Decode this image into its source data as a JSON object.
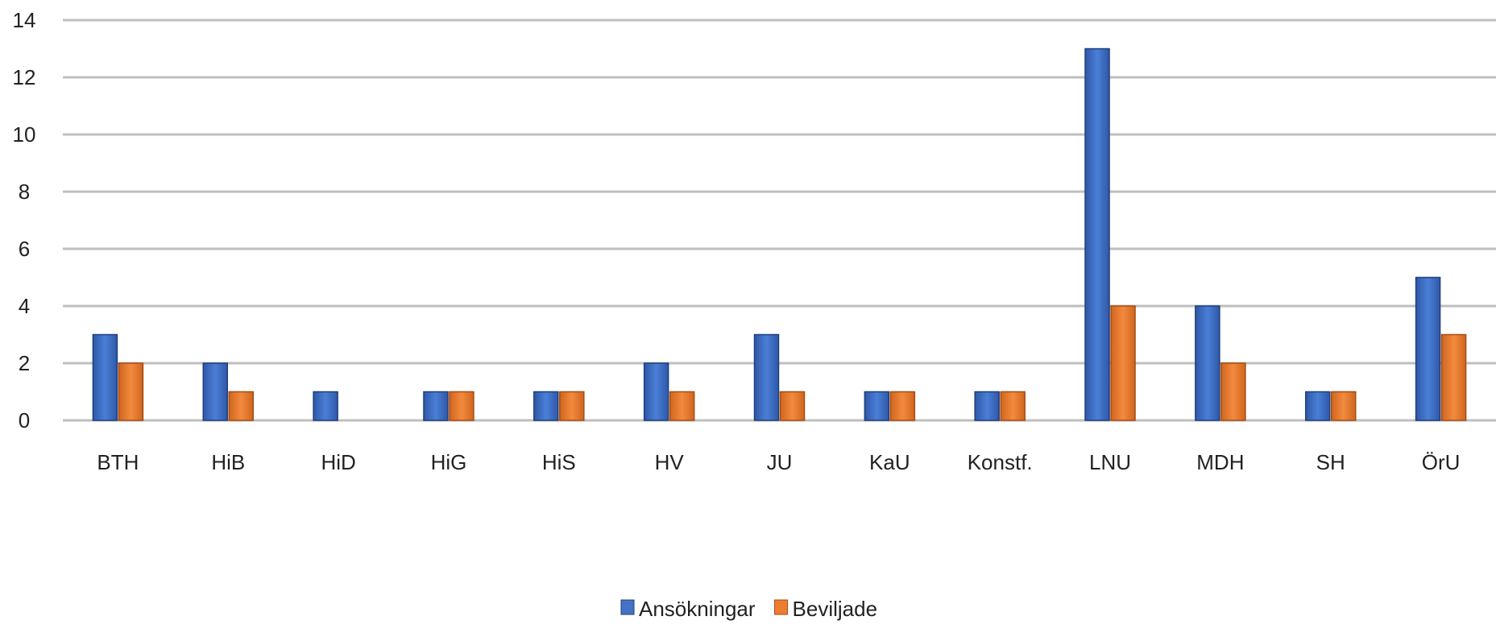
{
  "chart_data": {
    "type": "bar",
    "title": "",
    "xlabel": "",
    "ylabel": "",
    "ylim": [
      0,
      14
    ],
    "yticks": [
      0,
      2,
      4,
      6,
      8,
      10,
      12,
      14
    ],
    "grid": true,
    "legend_position": "bottom-center",
    "categories": [
      "BTH",
      "HiB",
      "HiD",
      "HiG",
      "HiS",
      "HV",
      "JU",
      "KaU",
      "Konstf.",
      "LNU",
      "MDH",
      "SH",
      "ÖrU"
    ],
    "series": [
      {
        "name": "Ansökningar",
        "color": "#4472C4",
        "values": [
          3,
          2,
          1,
          1,
          1,
          2,
          3,
          1,
          1,
          13,
          4,
          1,
          5
        ]
      },
      {
        "name": "Beviljade",
        "color": "#ED7D31",
        "values": [
          2,
          1,
          0,
          1,
          1,
          1,
          1,
          1,
          1,
          4,
          2,
          1,
          3
        ]
      }
    ]
  }
}
